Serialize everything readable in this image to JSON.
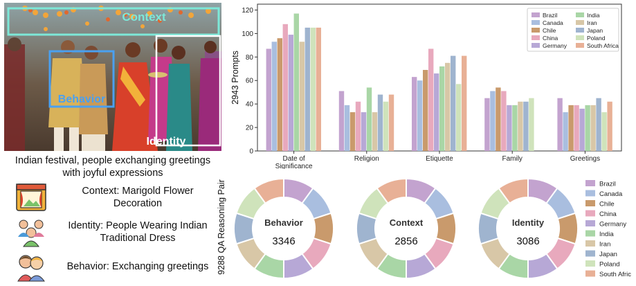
{
  "image_panel": {
    "box_labels": {
      "context": "Context",
      "behavior": "Behavior",
      "identity": "Identity"
    },
    "caption_line1": "Indian festival, people exchanging greetings",
    "caption_line2": "with joyful expressions",
    "context_line1": "Context: Marigold Flower",
    "context_line2": "Decoration",
    "identity_line1": "Identity: People Wearing Indian",
    "identity_line2": "Traditional Dress",
    "behavior_line1": "Behavior: Exchanging greetings",
    "icons": [
      "stage-curtain-icon",
      "people-group-icon",
      "greeting-friends-icon"
    ]
  },
  "colors": {
    "Brazil": "#c3a3cf",
    "Canada": "#a9bedf",
    "Chile": "#c99a6c",
    "China": "#e8a9bd",
    "Germany": "#b7a8d6",
    "India": "#a9d6a6",
    "Iran": "#d8c7a7",
    "Japan": "#9fb4cf",
    "Poland": "#cfe3bb",
    "South Africa": "#e8b096",
    "context_box": "#7de8d8",
    "behavior_box": "#4aa0f0",
    "identity_box": "#ffffff"
  },
  "chart_data": [
    {
      "type": "bar",
      "ylabel": "2943 Prompts",
      "ylim": [
        0,
        125
      ],
      "yticks": [
        0,
        20,
        40,
        60,
        80,
        100,
        120
      ],
      "grid": false,
      "legend_position": "top-right",
      "categories": [
        "Date of Significance",
        "Religion",
        "Etiquette",
        "Family",
        "Greetings"
      ],
      "category_labels": [
        [
          "Date of",
          "Significance"
        ],
        [
          "Religion"
        ],
        [
          "Etiquette"
        ],
        [
          "Family"
        ],
        [
          "Greetings"
        ]
      ],
      "series": [
        {
          "name": "Brazil",
          "values": [
            87,
            51,
            63,
            45,
            45
          ]
        },
        {
          "name": "Canada",
          "values": [
            93,
            39,
            60,
            51,
            33
          ]
        },
        {
          "name": "Chile",
          "values": [
            96,
            33,
            69,
            54,
            39
          ]
        },
        {
          "name": "China",
          "values": [
            108,
            42,
            87,
            51,
            39
          ]
        },
        {
          "name": "Germany",
          "values": [
            99,
            33,
            66,
            39,
            36
          ]
        },
        {
          "name": "India",
          "values": [
            117,
            54,
            72,
            39,
            39
          ]
        },
        {
          "name": "Iran",
          "values": [
            93,
            33,
            75,
            42,
            39
          ]
        },
        {
          "name": "Japan",
          "values": [
            105,
            48,
            81,
            42,
            45
          ]
        },
        {
          "name": "Poland",
          "values": [
            105,
            42,
            57,
            45,
            33
          ]
        },
        {
          "name": "South Africa",
          "values": [
            105,
            48,
            81,
            0,
            42
          ]
        }
      ]
    },
    {
      "type": "pie",
      "style": "donut",
      "ylabel": "9288 QA Reasoning Pair",
      "legend_position": "right",
      "slice_labels": [
        "Brazil",
        "Canada",
        "Chile",
        "China",
        "Germany",
        "India",
        "Iran",
        "Japan",
        "Poland",
        "South Africa"
      ],
      "donuts": [
        {
          "name": "Behavior",
          "total": "3346",
          "values": [
            10,
            10,
            10,
            10,
            10,
            10,
            10,
            10,
            10,
            10
          ]
        },
        {
          "name": "Context",
          "total": "2856",
          "values": [
            10,
            10,
            10,
            10,
            10,
            10,
            10,
            10,
            10,
            10
          ]
        },
        {
          "name": "Identity",
          "total": "3086",
          "values": [
            10,
            10,
            10,
            10,
            10,
            10,
            10,
            10,
            10,
            10
          ]
        }
      ]
    }
  ]
}
